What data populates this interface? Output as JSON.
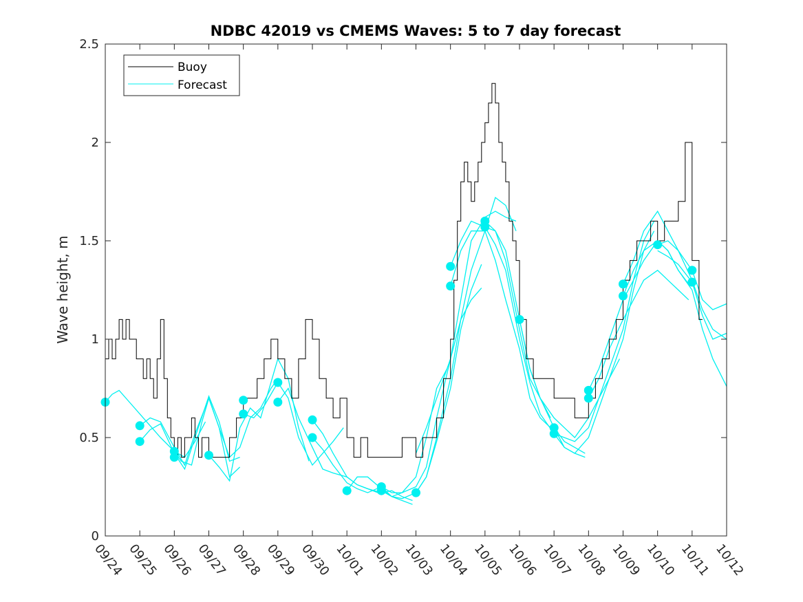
{
  "chart_data": {
    "type": "line",
    "title": "NDBC 42019 vs CMEMS Waves: 5 to 7 day forecast",
    "xlabel": "",
    "ylabel": "Wave height, m",
    "xlim": [
      0,
      18
    ],
    "ylim": [
      0,
      2.5
    ],
    "grid": false,
    "legend_position": "top-left",
    "x_tick_values": [
      0,
      1,
      2,
      3,
      4,
      5,
      6,
      7,
      8,
      9,
      10,
      11,
      12,
      13,
      14,
      15,
      16,
      17,
      18
    ],
    "x_tick_labels": [
      "09/24",
      "09/25",
      "09/26",
      "09/27",
      "09/28",
      "09/29",
      "09/30",
      "10/01",
      "10/02",
      "10/03",
      "10/04",
      "10/05",
      "10/06",
      "10/07",
      "10/08",
      "10/09",
      "10/10",
      "10/11",
      "10/12"
    ],
    "y_tick_values": [
      0,
      0.5,
      1,
      1.5,
      2,
      2.5
    ],
    "y_tick_labels": [
      "0",
      "0.5",
      "1",
      "1.5",
      "2",
      "2.5"
    ],
    "colors": {
      "buoy": "#000000",
      "forecast": "#00f0f0",
      "axes": "#262626"
    },
    "series": [
      {
        "name": "Buoy",
        "style": "step",
        "x": [
          0,
          0.1,
          0.2,
          0.3,
          0.4,
          0.5,
          0.6,
          0.7,
          0.8,
          0.9,
          1.0,
          1.1,
          1.2,
          1.3,
          1.4,
          1.5,
          1.6,
          1.7,
          1.8,
          1.9,
          2.0,
          2.1,
          2.2,
          2.3,
          2.4,
          2.5,
          2.6,
          2.7,
          2.8,
          2.9,
          3.0,
          3.2,
          3.4,
          3.6,
          3.8,
          4.0,
          4.2,
          4.4,
          4.6,
          4.8,
          5.0,
          5.2,
          5.4,
          5.6,
          5.8,
          6.0,
          6.2,
          6.4,
          6.6,
          6.8,
          7.0,
          7.2,
          7.4,
          7.6,
          7.8,
          8.0,
          8.2,
          8.4,
          8.6,
          8.8,
          9.0,
          9.2,
          9.4,
          9.6,
          9.8,
          10.0,
          10.1,
          10.2,
          10.3,
          10.4,
          10.5,
          10.6,
          10.7,
          10.8,
          10.9,
          11.0,
          11.1,
          11.2,
          11.3,
          11.4,
          11.5,
          11.6,
          11.7,
          11.8,
          11.9,
          12.0,
          12.2,
          12.4,
          12.6,
          12.8,
          13.0,
          13.2,
          13.4,
          13.6,
          13.8,
          14.0,
          14.2,
          14.4,
          14.6,
          14.8,
          15.0,
          15.2,
          15.4,
          15.6,
          15.8,
          16.0,
          16.2,
          16.4,
          16.6,
          16.8,
          17.0,
          17.2
        ],
        "values": [
          0.9,
          1.0,
          0.9,
          1.0,
          1.1,
          1.0,
          1.1,
          1.0,
          1.0,
          0.9,
          0.9,
          0.8,
          0.9,
          0.8,
          0.7,
          0.9,
          1.1,
          0.8,
          0.6,
          0.5,
          0.4,
          0.5,
          0.4,
          0.5,
          0.5,
          0.6,
          0.5,
          0.4,
          0.5,
          0.5,
          0.4,
          0.4,
          0.4,
          0.5,
          0.6,
          0.7,
          0.7,
          0.8,
          0.9,
          1.0,
          0.9,
          0.8,
          0.7,
          0.9,
          1.1,
          1.0,
          0.8,
          0.7,
          0.6,
          0.7,
          0.5,
          0.4,
          0.5,
          0.4,
          0.4,
          0.4,
          0.4,
          0.4,
          0.5,
          0.5,
          0.4,
          0.5,
          0.5,
          0.6,
          0.8,
          1.0,
          1.3,
          1.6,
          1.8,
          1.9,
          1.8,
          1.7,
          1.8,
          1.9,
          2.0,
          2.1,
          2.2,
          2.3,
          2.2,
          2.0,
          1.9,
          1.8,
          1.6,
          1.5,
          1.4,
          1.1,
          0.9,
          0.8,
          0.8,
          0.8,
          0.7,
          0.7,
          0.7,
          0.6,
          0.6,
          0.7,
          0.8,
          0.9,
          1.0,
          1.1,
          1.3,
          1.4,
          1.5,
          1.5,
          1.6,
          1.5,
          1.6,
          1.6,
          1.7,
          2.0,
          1.4,
          1.1
        ]
      },
      {
        "name": "Forecast",
        "style": "line",
        "segments": [
          {
            "x": [
              0.0,
              0.2,
              0.4,
              0.7,
              1.0,
              1.3,
              1.6,
              2.0,
              2.3,
              2.6,
              2.9
            ],
            "values": [
              0.68,
              0.72,
              0.74,
              0.68,
              0.62,
              0.56,
              0.5,
              0.43,
              0.4,
              0.48,
              0.58
            ]
          },
          {
            "x": [
              1.0,
              1.3,
              1.6,
              2.0,
              2.3,
              2.6,
              3.0,
              3.3,
              3.6,
              3.9
            ],
            "values": [
              0.56,
              0.6,
              0.58,
              0.45,
              0.36,
              0.52,
              0.7,
              0.55,
              0.3,
              0.35
            ]
          },
          {
            "x": [
              1.0,
              1.3,
              1.6,
              2.0,
              2.3,
              2.6,
              3.0,
              3.3,
              3.6,
              3.9
            ],
            "values": [
              0.48,
              0.54,
              0.57,
              0.42,
              0.34,
              0.5,
              0.71,
              0.58,
              0.38,
              0.4
            ]
          },
          {
            "x": [
              2.0,
              2.2,
              2.5,
              2.8,
              3.0,
              3.3,
              3.6,
              3.9,
              4.2,
              4.5,
              4.8,
              5.0
            ],
            "values": [
              0.43,
              0.38,
              0.36,
              0.58,
              0.7,
              0.55,
              0.4,
              0.45,
              0.6,
              0.65,
              0.75,
              0.8
            ]
          },
          {
            "x": [
              3.0,
              3.3,
              3.6,
              3.9,
              4.2,
              4.5,
              4.8,
              5.0,
              5.3,
              5.6,
              5.9
            ],
            "values": [
              0.41,
              0.35,
              0.28,
              0.55,
              0.65,
              0.6,
              0.78,
              0.9,
              0.8,
              0.55,
              0.38
            ]
          },
          {
            "x": [
              4.0,
              4.3,
              4.6,
              5.0,
              5.3,
              5.6,
              6.0,
              6.3,
              6.6,
              6.9
            ],
            "values": [
              0.62,
              0.6,
              0.66,
              0.78,
              0.7,
              0.5,
              0.36,
              0.42,
              0.48,
              0.55
            ]
          },
          {
            "x": [
              5.0,
              5.3,
              5.6,
              6.0,
              6.3,
              6.6,
              7.0,
              7.3,
              7.6,
              7.9
            ],
            "values": [
              0.68,
              0.75,
              0.6,
              0.45,
              0.34,
              0.32,
              0.3,
              0.26,
              0.24,
              0.22
            ]
          },
          {
            "x": [
              6.0,
              6.3,
              6.6,
              7.0,
              7.3,
              7.6,
              8.0,
              8.3,
              8.6,
              8.9
            ],
            "values": [
              0.59,
              0.52,
              0.42,
              0.3,
              0.26,
              0.24,
              0.22,
              0.23,
              0.2,
              0.18
            ]
          },
          {
            "x": [
              6.0,
              6.3,
              6.6,
              7.0,
              7.3,
              7.6,
              8.0,
              8.3,
              8.6,
              8.9
            ],
            "values": [
              0.5,
              0.44,
              0.36,
              0.27,
              0.24,
              0.22,
              0.25,
              0.2,
              0.18,
              0.16
            ]
          },
          {
            "x": [
              7.0,
              7.3,
              7.6,
              8.0,
              8.3,
              8.6,
              9.0,
              9.3,
              9.6,
              9.9
            ],
            "values": [
              0.23,
              0.3,
              0.3,
              0.24,
              0.2,
              0.22,
              0.3,
              0.5,
              0.75,
              0.85
            ]
          },
          {
            "x": [
              8.0,
              8.3,
              8.6,
              9.0,
              9.3,
              9.6,
              10.0,
              10.3,
              10.6,
              10.9
            ],
            "values": [
              0.25,
              0.22,
              0.22,
              0.25,
              0.35,
              0.6,
              0.9,
              1.1,
              1.2,
              1.26
            ]
          },
          {
            "x": [
              8.0,
              8.3,
              8.6,
              9.0,
              9.3,
              9.6,
              10.0,
              10.3,
              10.6,
              10.9
            ],
            "values": [
              0.23,
              0.2,
              0.19,
              0.22,
              0.3,
              0.48,
              0.75,
              1.05,
              1.25,
              1.38
            ]
          },
          {
            "x": [
              9.0,
              9.3,
              9.6,
              10.0,
              10.3,
              10.6,
              11.0,
              11.3,
              11.6,
              11.9
            ],
            "values": [
              0.42,
              0.55,
              0.7,
              0.9,
              1.2,
              1.5,
              1.62,
              1.65,
              1.62,
              1.6
            ]
          },
          {
            "x": [
              9.0,
              9.3,
              9.6,
              10.0,
              10.3,
              10.6,
              11.0,
              11.3,
              11.6,
              11.9
            ],
            "values": [
              0.22,
              0.3,
              0.5,
              0.8,
              1.1,
              1.35,
              1.55,
              1.72,
              1.68,
              1.55
            ]
          },
          {
            "x": [
              10.0,
              10.3,
              10.6,
              11.0,
              11.3,
              11.6,
              12.0,
              12.3,
              12.6,
              12.9
            ],
            "values": [
              1.37,
              1.5,
              1.6,
              1.57,
              1.55,
              1.4,
              1.05,
              0.8,
              0.7,
              0.6
            ]
          },
          {
            "x": [
              10.0,
              10.3,
              10.6,
              11.0,
              11.3,
              11.6,
              12.0,
              12.3,
              12.6,
              12.9
            ],
            "values": [
              1.27,
              1.45,
              1.55,
              1.55,
              1.4,
              1.2,
              0.95,
              0.7,
              0.6,
              0.55
            ]
          },
          {
            "x": [
              11.0,
              11.3,
              11.6,
              12.0,
              12.3,
              12.6,
              13.0,
              13.3,
              13.6,
              13.9
            ],
            "values": [
              1.6,
              1.55,
              1.45,
              1.1,
              0.85,
              0.7,
              0.55,
              0.48,
              0.45,
              0.42
            ]
          },
          {
            "x": [
              11.0,
              11.3,
              11.6,
              12.0,
              12.3,
              12.6,
              13.0,
              13.3,
              13.6,
              13.9
            ],
            "values": [
              1.57,
              1.48,
              1.35,
              1.0,
              0.78,
              0.62,
              0.52,
              0.45,
              0.42,
              0.4
            ]
          },
          {
            "x": [
              12.0,
              12.3,
              12.6,
              13.0,
              13.3,
              13.6,
              14.0,
              14.3,
              14.6,
              14.9
            ],
            "values": [
              1.1,
              0.85,
              0.7,
              0.6,
              0.55,
              0.5,
              0.6,
              0.7,
              0.8,
              0.9
            ]
          },
          {
            "x": [
              13.0,
              13.3,
              13.6,
              14.0,
              14.3,
              14.6,
              15.0,
              15.3,
              15.6,
              15.9
            ],
            "values": [
              0.55,
              0.45,
              0.42,
              0.5,
              0.65,
              0.8,
              1.0,
              1.25,
              1.45,
              1.55
            ]
          },
          {
            "x": [
              13.0,
              13.3,
              13.6,
              14.0,
              14.3,
              14.6,
              15.0,
              15.3,
              15.6,
              15.9
            ],
            "values": [
              0.52,
              0.5,
              0.48,
              0.55,
              0.7,
              0.85,
              1.05,
              1.3,
              1.5,
              1.6
            ]
          },
          {
            "x": [
              14.0,
              14.3,
              14.6,
              15.0,
              15.3,
              15.6,
              16.0,
              16.3,
              16.6,
              16.9
            ],
            "values": [
              0.74,
              0.85,
              1.0,
              1.2,
              1.3,
              1.4,
              1.5,
              1.45,
              1.35,
              1.28
            ]
          },
          {
            "x": [
              14.0,
              14.3,
              14.6,
              15.0,
              15.3,
              15.6,
              16.0,
              16.3,
              16.6,
              16.9
            ],
            "values": [
              0.7,
              0.8,
              0.95,
              1.1,
              1.2,
              1.3,
              1.35,
              1.3,
              1.25,
              1.2
            ]
          },
          {
            "x": [
              15.0,
              15.3,
              15.6,
              16.0,
              16.3,
              16.6,
              17.0,
              17.3,
              17.6,
              18.0
            ],
            "values": [
              1.28,
              1.4,
              1.55,
              1.65,
              1.55,
              1.45,
              1.3,
              1.15,
              1.05,
              1.0
            ]
          },
          {
            "x": [
              15.0,
              15.3,
              15.6,
              16.0,
              16.3,
              16.6,
              17.0,
              17.3,
              17.6,
              18.0
            ],
            "values": [
              1.22,
              1.35,
              1.45,
              1.5,
              1.45,
              1.35,
              1.25,
              1.05,
              0.9,
              0.76
            ]
          },
          {
            "x": [
              16.0,
              16.3,
              16.6,
              17.0,
              17.3,
              17.6,
              18.0
            ],
            "values": [
              1.48,
              1.5,
              1.45,
              1.35,
              1.2,
              1.15,
              1.18
            ]
          },
          {
            "x": [
              16.0,
              16.3,
              16.6,
              17.0,
              17.3,
              17.6,
              18.0
            ],
            "values": [
              1.45,
              1.42,
              1.38,
              1.29,
              1.12,
              1.0,
              1.03
            ]
          }
        ]
      }
    ],
    "forecast_start_markers": {
      "x": [
        0.0,
        1.0,
        1.0,
        2.0,
        2.0,
        3.0,
        4.0,
        4.0,
        5.0,
        5.0,
        6.0,
        6.0,
        7.0,
        8.0,
        8.0,
        9.0,
        10.0,
        10.0,
        11.0,
        11.0,
        12.0,
        13.0,
        13.0,
        14.0,
        14.0,
        15.0,
        15.0,
        16.0,
        17.0,
        17.0
      ],
      "values": [
        0.68,
        0.56,
        0.48,
        0.43,
        0.4,
        0.41,
        0.69,
        0.62,
        0.78,
        0.68,
        0.59,
        0.5,
        0.23,
        0.25,
        0.23,
        0.22,
        1.37,
        1.27,
        1.6,
        1.57,
        1.1,
        0.55,
        0.52,
        0.74,
        0.7,
        1.28,
        1.22,
        1.48,
        1.35,
        1.29
      ]
    },
    "legend": [
      "Buoy",
      "Forecast"
    ]
  }
}
